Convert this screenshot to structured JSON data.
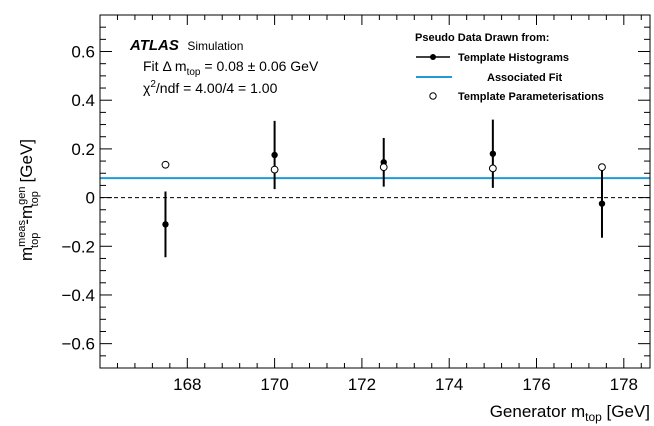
{
  "chart_data": {
    "type": "scatter",
    "brand": "ATLAS",
    "brand_sub": "Simulation",
    "fit_text": {
      "prefix": "Fit Δ m",
      "sub": "top",
      "suffix": " = 0.08 ± 0.06 GeV"
    },
    "chi2_text": {
      "chi": "χ",
      "sup": "2",
      "rest": "/ndf = 4.00/4 = 1.00"
    },
    "xlabel": {
      "main": "Generator m",
      "sub": "top",
      "unit": " [GeV]"
    },
    "ylabel": {
      "m1": "m",
      "sup1": "meas",
      "sub1": "top",
      "dash": "-m",
      "sup2": "gen",
      "sub2": "top",
      "unit": " [GeV]"
    },
    "xlim": [
      166,
      178.6
    ],
    "ylim": [
      -0.7,
      0.75
    ],
    "x_ticks": [
      {
        "value": 168,
        "label": "168"
      },
      {
        "value": 170,
        "label": "170"
      },
      {
        "value": 172,
        "label": "172"
      },
      {
        "value": 174,
        "label": "174"
      },
      {
        "value": 176,
        "label": "176"
      },
      {
        "value": 178,
        "label": "178"
      }
    ],
    "y_ticks": [
      {
        "value": -0.6,
        "label": "−0.6"
      },
      {
        "value": -0.4,
        "label": "−0.4"
      },
      {
        "value": -0.2,
        "label": "−0.2"
      },
      {
        "value": 0,
        "label": "0"
      },
      {
        "value": 0.2,
        "label": "0.2"
      },
      {
        "value": 0.4,
        "label": "0.4"
      },
      {
        "value": 0.6,
        "label": "0.6"
      }
    ],
    "legend": {
      "position": "top-right",
      "title": "Pseudo Data Drawn from:",
      "entries": [
        "Template Histograms",
        "Associated Fit",
        "Template Parameterisations"
      ]
    },
    "series": [
      {
        "name": "Template Histograms",
        "marker": "filled-circle",
        "color": "#000000",
        "x": [
          167.5,
          170,
          172.5,
          175,
          177.5
        ],
        "y": [
          -0.11,
          0.175,
          0.145,
          0.18,
          -0.025
        ],
        "yerr": [
          0.135,
          0.14,
          0.1,
          0.14,
          0.14
        ]
      },
      {
        "name": "Template Parameterisations",
        "marker": "open-circle",
        "color": "#000000",
        "x": [
          167.5,
          170,
          172.5,
          175,
          177.5
        ],
        "y": [
          0.135,
          0.115,
          0.125,
          0.12,
          0.125
        ]
      }
    ],
    "fit": {
      "name": "Associated Fit",
      "value": 0.08,
      "color": "#1f9bd7"
    },
    "reference_line": {
      "value": 0,
      "style": "dashed"
    }
  }
}
